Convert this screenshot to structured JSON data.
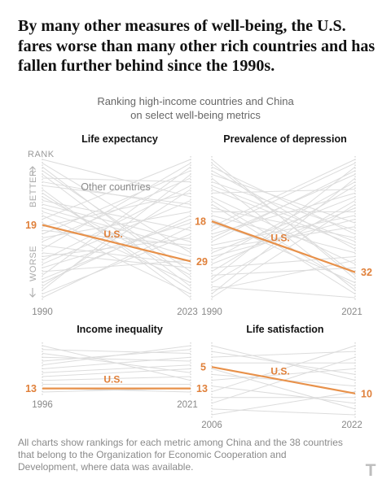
{
  "headline": "By many other measures of well-being, the U.S. fares worse than many other rich countries and has fallen further behind since the 1990s.",
  "subtitle_line1": "Ranking high-income countries and China",
  "subtitle_line2": "on select well-being metrics",
  "axis_labels": {
    "rank": "RANK",
    "better": "BETTER",
    "worse": "WORSE",
    "other_countries": "Other countries"
  },
  "footnote": "All charts show rankings for each metric among China and the 38 countries that belong to the Organization for Economic Cooperation and Development, where data was available.",
  "colors": {
    "us_line": "#e8914a",
    "us_label": "#e0803a",
    "other_lines": "#dcdcdc",
    "axis_text": "#999999"
  },
  "chart_data": [
    {
      "type": "line",
      "title": "Life expectancy",
      "x": [
        "1990",
        "2023"
      ],
      "ylim": [
        1,
        39
      ],
      "y_inverted": true,
      "series": [
        {
          "name": "U.S.",
          "values": [
            19,
            29
          ]
        }
      ],
      "start_label": "19",
      "end_label": "29",
      "highlight_label": "U.S.",
      "grid": false
    },
    {
      "type": "line",
      "title": "Prevalence of depression",
      "x": [
        "1990",
        "2021"
      ],
      "ylim": [
        1,
        39
      ],
      "y_inverted": true,
      "series": [
        {
          "name": "U.S.",
          "values": [
            18,
            32
          ]
        }
      ],
      "start_label": "18",
      "end_label": "32",
      "highlight_label": "U.S.",
      "grid": false
    },
    {
      "type": "line",
      "title": "Income inequality",
      "x": [
        "1996",
        "2021"
      ],
      "ylim": [
        1,
        14
      ],
      "y_inverted": true,
      "series": [
        {
          "name": "U.S.",
          "values": [
            13,
            13
          ]
        }
      ],
      "start_label": "13",
      "end_label": "13",
      "highlight_label": "U.S.",
      "grid": false
    },
    {
      "type": "line",
      "title": "Life satisfaction",
      "x": [
        "2006",
        "2022"
      ],
      "ylim": [
        1,
        14
      ],
      "y_inverted": true,
      "series": [
        {
          "name": "U.S.",
          "values": [
            5,
            10
          ]
        }
      ],
      "start_label": "5",
      "end_label": "10",
      "highlight_label": "U.S.",
      "grid": false
    }
  ]
}
